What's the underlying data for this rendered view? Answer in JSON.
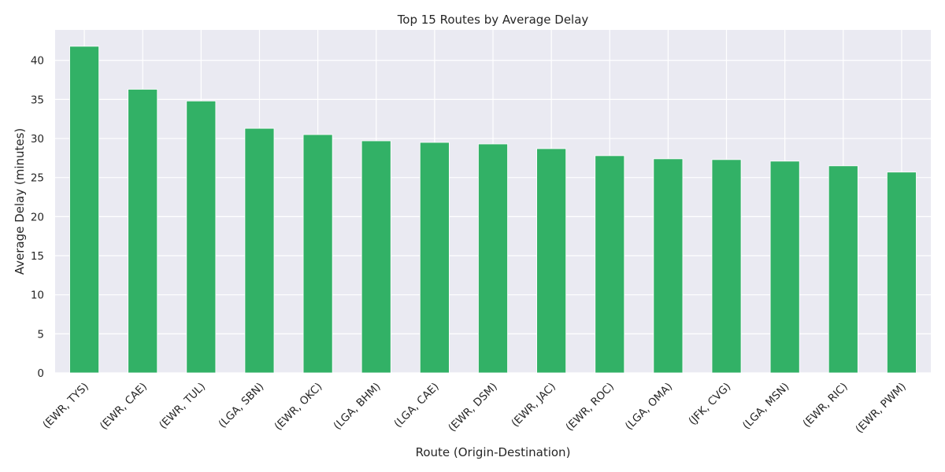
{
  "chart_data": {
    "type": "bar",
    "title": "Top 15 Routes by Average Delay",
    "xlabel": "Route (Origin-Destination)",
    "ylabel": "Average Delay (minutes)",
    "categories": [
      "(EWR, TYS)",
      "(EWR, CAE)",
      "(EWR, TUL)",
      "(LGA, SBN)",
      "(EWR, OKC)",
      "(LGA, BHM)",
      "(LGA, CAE)",
      "(EWR, DSM)",
      "(EWR, JAC)",
      "(EWR, ROC)",
      "(LGA, OMA)",
      "(JFK, CVG)",
      "(LGA, MSN)",
      "(EWR, RIC)",
      "(EWR, PWM)"
    ],
    "values": [
      41.8,
      36.3,
      34.8,
      31.3,
      30.5,
      29.7,
      29.5,
      29.3,
      28.7,
      27.8,
      27.4,
      27.3,
      27.1,
      26.5,
      25.7
    ],
    "yticks": [
      0,
      5,
      10,
      15,
      20,
      25,
      30,
      35,
      40
    ],
    "ylim": [
      0,
      43.9
    ],
    "grid": true,
    "colors": {
      "bar": "#32b166",
      "background": "#eaeaf2",
      "grid": "#ffffff"
    }
  }
}
